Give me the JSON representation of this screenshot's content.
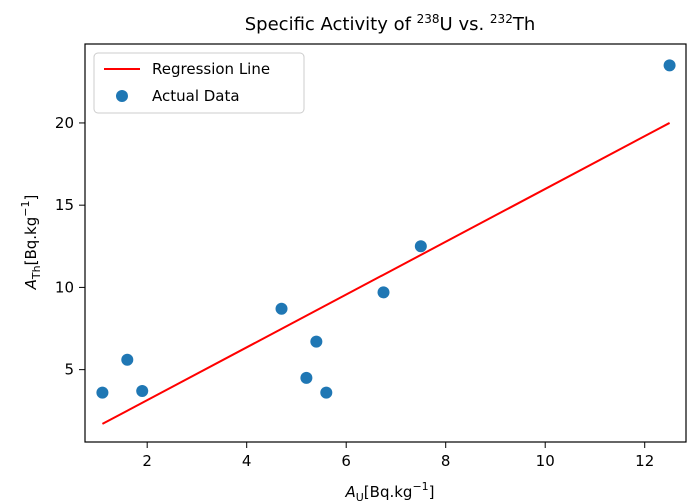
{
  "chart_data": {
    "type": "scatter",
    "title": {
      "prefix": "Specific Activity of ",
      "sup1": "238",
      "mid": "U vs. ",
      "sup2": "232",
      "suffix": "Th"
    },
    "xlabel": {
      "var": "A",
      "sub": "U",
      "unit": "[Bq.kg",
      "sup": "−1",
      "close": "]"
    },
    "ylabel": {
      "var": "A",
      "sub": "Th",
      "unit": "[Bq.kg",
      "sup": "−1",
      "close": "]"
    },
    "xlim": [
      0.75,
      12.85
    ],
    "ylim": [
      0.6,
      24.8
    ],
    "xticks": [
      2,
      4,
      6,
      8,
      10,
      12
    ],
    "yticks": [
      5,
      10,
      15,
      20
    ],
    "grid": false,
    "legend_position": "top-left",
    "series": [
      {
        "name": "Actual Data",
        "kind": "scatter",
        "color": "#1f77b4",
        "points": [
          {
            "x": 1.1,
            "y": 3.6
          },
          {
            "x": 1.6,
            "y": 5.6
          },
          {
            "x": 1.9,
            "y": 3.7
          },
          {
            "x": 4.7,
            "y": 8.7
          },
          {
            "x": 5.2,
            "y": 4.5
          },
          {
            "x": 5.4,
            "y": 6.7
          },
          {
            "x": 5.6,
            "y": 3.6
          },
          {
            "x": 6.75,
            "y": 9.7
          },
          {
            "x": 7.5,
            "y": 12.5
          },
          {
            "x": 12.5,
            "y": 23.5
          }
        ]
      },
      {
        "name": "Regression Line",
        "kind": "line",
        "color": "#ff0000",
        "points": [
          {
            "x": 1.1,
            "y": 1.7
          },
          {
            "x": 12.5,
            "y": 20.0
          }
        ]
      }
    ]
  }
}
